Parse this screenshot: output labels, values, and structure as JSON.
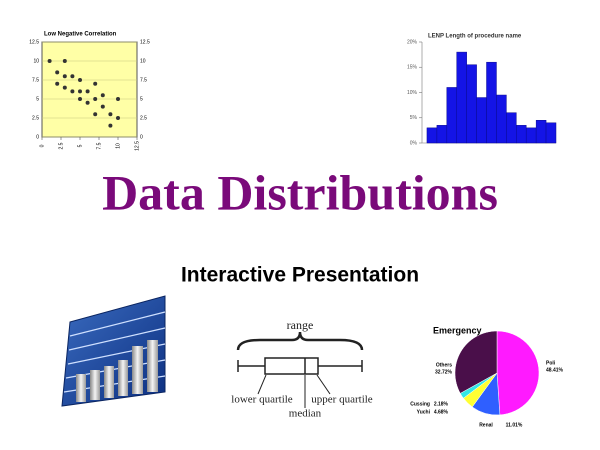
{
  "title": "Data Distributions",
  "subtitle": "Interactive Presentation",
  "chart_data": [
    {
      "type": "scatter",
      "title": "Low Negative Correlation",
      "x": [
        1,
        2,
        2,
        3,
        3,
        3,
        4,
        4,
        5,
        5,
        5,
        6,
        6,
        7,
        7,
        7,
        8,
        8,
        9,
        9,
        10,
        10
      ],
      "y": [
        10,
        8.5,
        7,
        10,
        8,
        6.5,
        8,
        6,
        7.5,
        6,
        5,
        6,
        4.5,
        7,
        5,
        3,
        5.5,
        4,
        3,
        1.5,
        5,
        2.5
      ],
      "color": "#333333",
      "xlim": [
        0,
        12.5
      ],
      "xticks": [
        0,
        2.5,
        5,
        7.5,
        10,
        12.5
      ],
      "ylim": [
        0,
        12.5
      ],
      "yticks": [
        0,
        2.5,
        5,
        7.5,
        10,
        12.5
      ],
      "grid": true
    },
    {
      "type": "histogram",
      "title": "LENP Length of procedure name",
      "bins": [
        1,
        2,
        3,
        4,
        5,
        6,
        7,
        8,
        9,
        10,
        11,
        12,
        13,
        14
      ],
      "values": [
        3,
        3.5,
        11,
        18,
        15.5,
        9,
        16,
        9.5,
        6,
        3.5,
        3,
        4.5,
        4
      ],
      "color": "#1414e6",
      "xlim": [
        0.5,
        14
      ],
      "ylim": [
        0,
        20
      ],
      "yticks": [
        {
          "value": 0,
          "label": "0%"
        },
        {
          "value": 5,
          "label": "5%"
        },
        {
          "value": 10,
          "label": "10%"
        },
        {
          "value": 15,
          "label": "15%"
        },
        {
          "value": 20,
          "label": "20%"
        }
      ]
    },
    {
      "type": "pie",
      "title": "Emergency",
      "categories": [
        "Poli",
        "Renal",
        "Yuchi",
        "Cussing",
        "Others"
      ],
      "values": [
        48.41,
        11.01,
        4.68,
        2.18,
        32.72
      ],
      "value_labels": [
        "48.41%",
        "11.01%",
        "4.68%",
        "2.18%",
        "32.72%"
      ],
      "colors": [
        "#ff1aff",
        "#2f5fff",
        "#ffff33",
        "#33e6e6",
        "#4a0f4a"
      ]
    }
  ],
  "box_diagram": {
    "range": "range",
    "lower": "lower quartile",
    "median": "median",
    "upper": "upper quartile"
  }
}
